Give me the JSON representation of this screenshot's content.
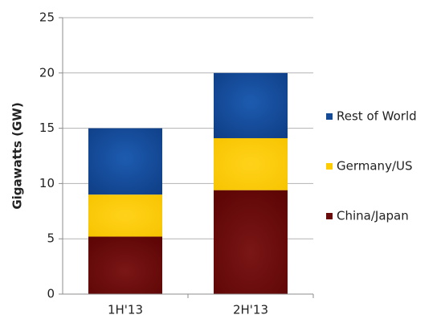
{
  "chart_data": {
    "type": "bar",
    "stacked": true,
    "categories": [
      "1H'13",
      "2H'13"
    ],
    "series": [
      {
        "name": "China/Japan",
        "values": [
          5.2,
          9.4
        ],
        "color": "#6b0a0a"
      },
      {
        "name": "Germany/US",
        "values": [
          3.8,
          4.7
        ],
        "color": "#ffcc00"
      },
      {
        "name": "Rest of World",
        "values": [
          6.0,
          5.9
        ],
        "color": "#144a96"
      }
    ],
    "xlabel": "",
    "ylabel": "Gigawatts (GW)",
    "ylim": [
      0,
      25
    ],
    "yticks": [
      0,
      5,
      10,
      15,
      20,
      25
    ],
    "grid": true,
    "legend_placement": "right",
    "legend_order": [
      "Rest of World",
      "Germany/US",
      "China/Japan"
    ]
  }
}
